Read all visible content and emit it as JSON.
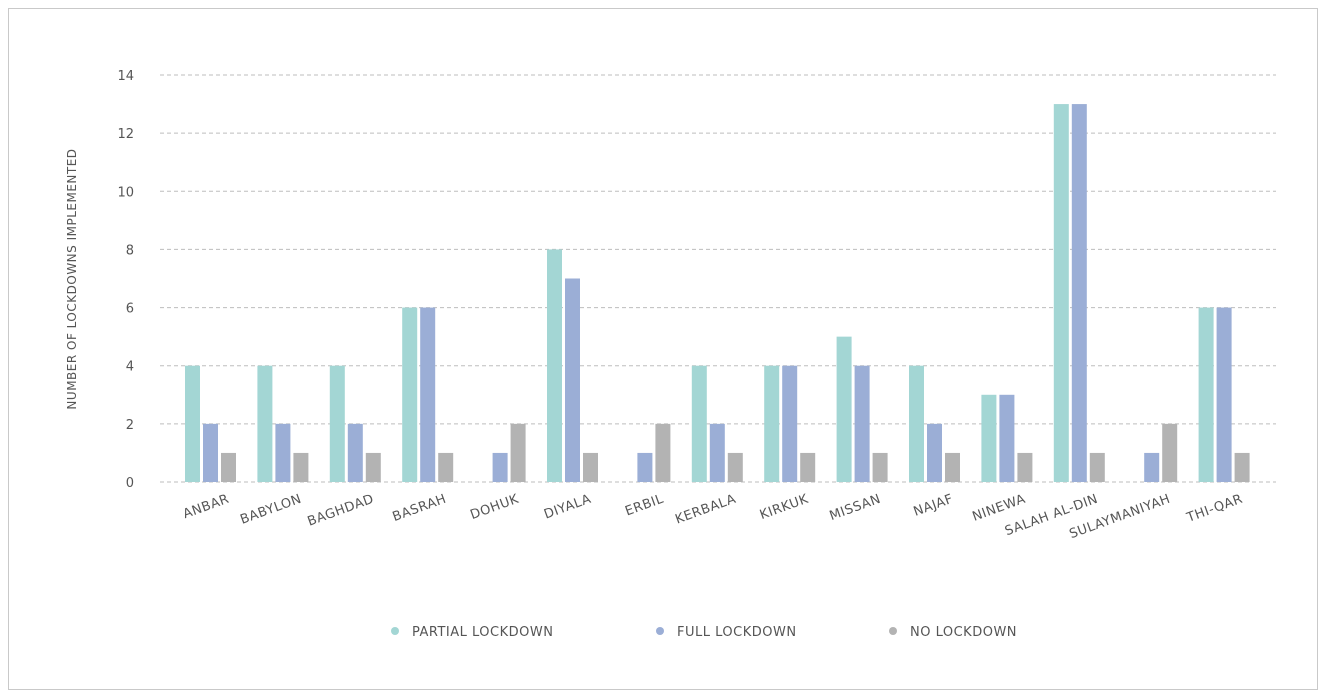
{
  "chart_data": {
    "type": "bar",
    "ylabel": "NUMBER OF LOCKDOWNS IMPLEMENTED",
    "xlabel": "",
    "ylim": [
      0,
      14
    ],
    "yticks": [
      0,
      2,
      4,
      6,
      8,
      10,
      12,
      14
    ],
    "grid": true,
    "legend_position": "bottom",
    "categories": [
      "ANBAR",
      "BABYLON",
      "BAGHDAD",
      "BASRAH",
      "DOHUK",
      "DIYALA",
      "ERBIL",
      "KERBALA",
      "KIRKUK",
      "MISSAN",
      "NAJAF",
      "NINEWA",
      "SALAH AL-DIN",
      "SULAYMANIYAH",
      "THI-QAR"
    ],
    "series": [
      {
        "name": "PARTIAL LOCKDOWN",
        "color": "#a3d6d4",
        "values": [
          4,
          4,
          4,
          6,
          0,
          8,
          0,
          4,
          4,
          5,
          4,
          3,
          13,
          0,
          6
        ]
      },
      {
        "name": "FULL LOCKDOWN",
        "color": "#9baed6",
        "values": [
          2,
          2,
          2,
          6,
          1,
          7,
          1,
          2,
          4,
          4,
          2,
          3,
          13,
          1,
          6
        ]
      },
      {
        "name": "NO LOCKDOWN",
        "color": "#b3b3b3",
        "values": [
          1,
          1,
          1,
          1,
          2,
          1,
          2,
          1,
          1,
          1,
          1,
          1,
          1,
          2,
          1
        ]
      }
    ]
  }
}
